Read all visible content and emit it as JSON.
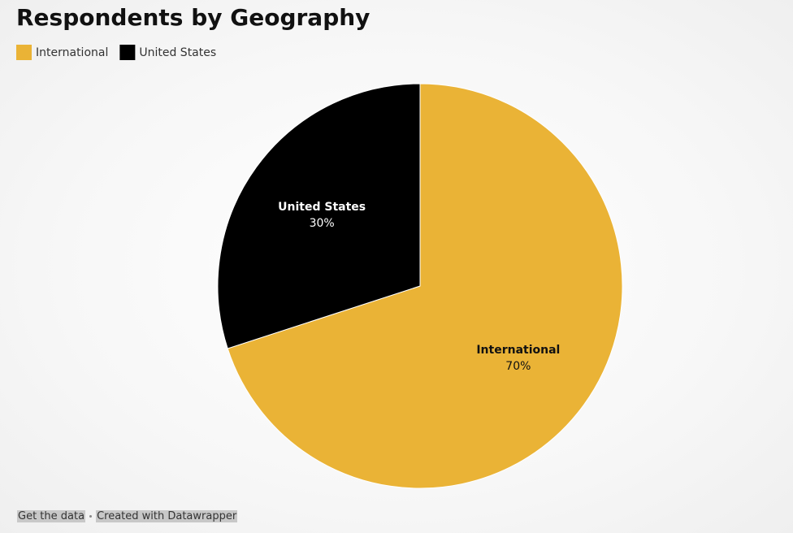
{
  "chart_data": {
    "type": "pie",
    "title": "Respondents by Geography",
    "categories": [
      "International",
      "United States"
    ],
    "values": [
      70,
      30
    ],
    "value_labels": [
      "70%",
      "30%"
    ],
    "colors": [
      "#eab336",
      "#000000"
    ],
    "legend": "top-left"
  },
  "footer": {
    "links": [
      "Get the data",
      "Created with Datawrapper"
    ]
  }
}
